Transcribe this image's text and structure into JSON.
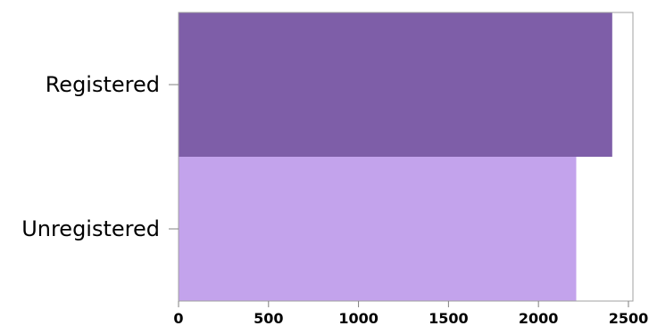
{
  "chart_data": {
    "type": "bar",
    "orientation": "horizontal",
    "categories": [
      "Registered",
      "Unregistered"
    ],
    "values": [
      2410,
      2210
    ],
    "colors": [
      "#7e5ea8",
      "#c3a3ec"
    ],
    "xlim": [
      0,
      2500
    ],
    "xticks": [
      "0",
      "500",
      "1000",
      "1500",
      "2000",
      "2500"
    ],
    "title": "",
    "xlabel": "",
    "ylabel": "",
    "grid": false,
    "legend": "none"
  }
}
